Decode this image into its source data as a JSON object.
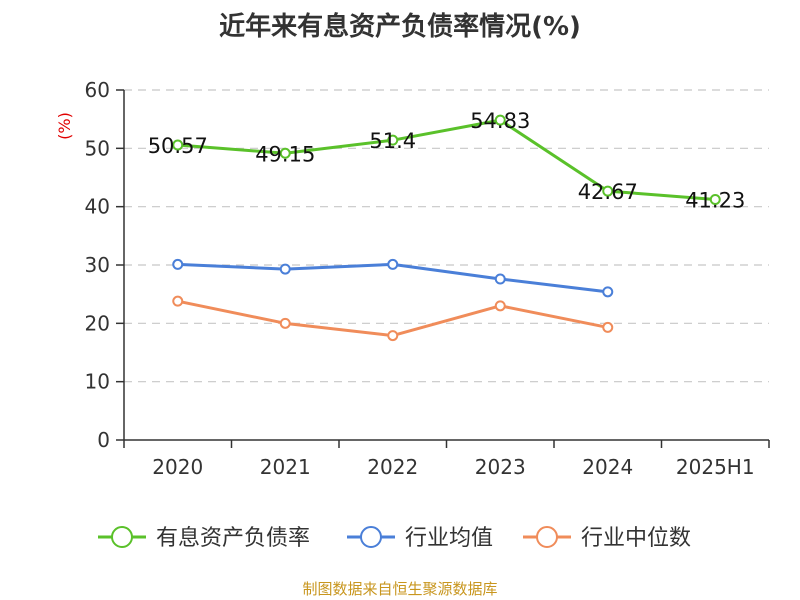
{
  "chart_data": {
    "type": "line",
    "title": "近年来有息资产负债率情况(%)",
    "ylabel": "(%)",
    "xlabel": "",
    "categories": [
      "2020",
      "2021",
      "2022",
      "2023",
      "2024",
      "2025H1"
    ],
    "ylim": [
      0,
      60
    ],
    "yticks": [
      0,
      10,
      20,
      30,
      40,
      50,
      60
    ],
    "grid": true,
    "legend_position": "bottom",
    "series": [
      {
        "name": "有息资产负债率",
        "color": "#5ac12a",
        "values": [
          50.57,
          49.15,
          51.4,
          54.83,
          42.67,
          41.23
        ],
        "labels": [
          "50.57",
          "49.15",
          "51.4",
          "54.83",
          "42.67",
          "41.23"
        ]
      },
      {
        "name": "行业均值",
        "color": "#4a7fd8",
        "values": [
          30.1,
          29.3,
          30.1,
          27.6,
          25.4,
          null
        ]
      },
      {
        "name": "行业中位数",
        "color": "#f08c5a",
        "values": [
          23.8,
          20.0,
          17.9,
          23.0,
          19.3,
          null
        ]
      }
    ]
  },
  "footer": "制图数据来自恒生聚源数据库"
}
